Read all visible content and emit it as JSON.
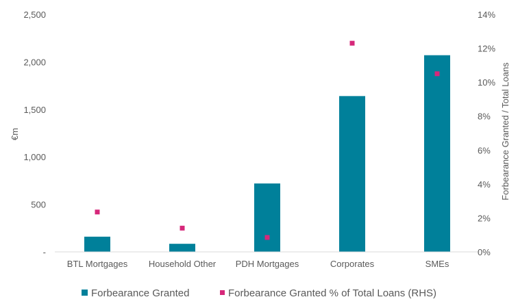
{
  "chart_data": {
    "type": "bar",
    "categories": [
      "BTL Mortgages",
      "Household Other",
      "PDH Mortgages",
      "Corporates",
      "SMEs"
    ],
    "series": [
      {
        "name": "Forbearance Granted",
        "type": "bar",
        "axis": "left",
        "color": "#00809a",
        "values": [
          160,
          85,
          720,
          1640,
          2070
        ]
      },
      {
        "name": "Forbearance Granted % of Total Loans (RHS)",
        "type": "scatter",
        "axis": "right",
        "color": "#d6287a",
        "values": [
          2.35,
          1.4,
          0.85,
          12.3,
          10.5
        ]
      }
    ],
    "ylabel": "€m",
    "y2label": "Forbearance Granted / Total Loans",
    "ylim": [
      0,
      2500
    ],
    "y2lim": [
      0,
      14
    ],
    "y_ticks": [
      "-",
      "500",
      "1,000",
      "1,500",
      "2,000",
      "2,500"
    ],
    "y2_ticks": [
      "0%",
      "2%",
      "4%",
      "6%",
      "8%",
      "10%",
      "12%",
      "14%"
    ],
    "grid": false,
    "legend_position": "bottom"
  }
}
